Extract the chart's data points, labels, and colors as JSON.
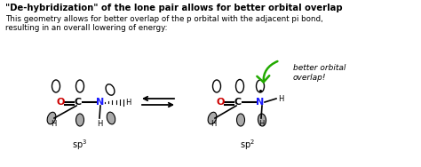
{
  "title": "\"De-hybridization\" of the lone pair allows for better orbital overlap",
  "body_line1": "This geometry allows for better overlap of the p orbital with the adjacent pi bond,",
  "body_line2": "resulting in an overall lowering of energy:",
  "sp3_label": "sp$^3$",
  "sp2_label": "sp$^2$",
  "better_orbital": "better orbital\noverlap!",
  "bg_color": "#ffffff",
  "title_color": "#000000",
  "body_color": "#000000",
  "O_color": "#cc0000",
  "N_color": "#1a1aff",
  "orbital_fill": "#aaaaaa",
  "orbital_edge": "#000000",
  "arrow_color": "#000000",
  "green_arrow_color": "#22aa00"
}
